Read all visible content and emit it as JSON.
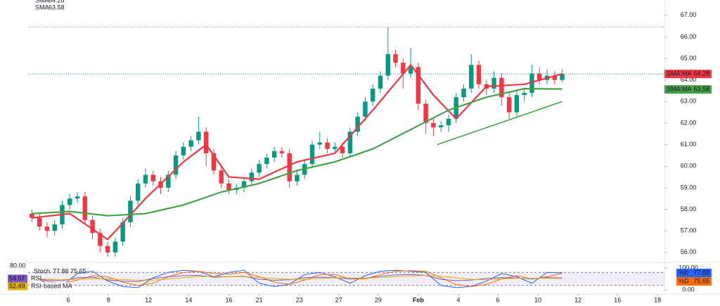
{
  "chart_data": [
    {
      "type": "candlestick",
      "up_color": "#089981",
      "down_color": "#f23645",
      "open": [
        57.8,
        57.6,
        57.2,
        57.0,
        57.3,
        58.2,
        58.5,
        58.6,
        57.5,
        56.9,
        56.3,
        56.0,
        56.5,
        57.4,
        58.4,
        59.2,
        59.6,
        59.3,
        59.0,
        59.6,
        60.5,
        60.9,
        61.2,
        61.6,
        60.6,
        59.8,
        59.2,
        58.9,
        59.0,
        59.3,
        59.7,
        60.1,
        60.4,
        60.7,
        60.6,
        59.3,
        59.6,
        60.1,
        61.0,
        61.1,
        60.8,
        60.9,
        60.6,
        61.6,
        62.3,
        63.0,
        63.6,
        64.2,
        65.2,
        64.8,
        64.3,
        64.6,
        62.9,
        62.0,
        61.8,
        61.9,
        62.2,
        63.2,
        63.6,
        64.7,
        63.8,
        63.6,
        64.1,
        63.2,
        62.5,
        63.3,
        63.4,
        64.3,
        64.0,
        64.2,
        64.0
      ],
      "high": [
        58.0,
        57.8,
        57.4,
        57.5,
        58.4,
        58.7,
        58.8,
        58.8,
        57.7,
        57.1,
        56.5,
        56.7,
        57.6,
        58.6,
        59.4,
        59.9,
        59.8,
        59.5,
        59.8,
        60.7,
        61.1,
        61.4,
        62.3,
        61.8,
        60.8,
        60.0,
        59.4,
        59.2,
        59.5,
        59.9,
        60.3,
        60.6,
        60.9,
        60.9,
        60.8,
        59.8,
        60.3,
        61.2,
        61.6,
        61.3,
        61.1,
        61.1,
        61.8,
        62.5,
        63.2,
        63.8,
        64.4,
        66.45,
        65.4,
        65.0,
        65.5,
        64.8,
        63.1,
        62.2,
        62.1,
        62.4,
        63.4,
        63.8,
        65.2,
        64.9,
        64.0,
        64.4,
        64.3,
        63.4,
        63.5,
        63.6,
        64.7,
        64.6,
        64.5,
        64.4,
        64.5
      ],
      "low": [
        57.4,
        57.0,
        56.7,
        56.8,
        57.1,
        58.0,
        58.3,
        57.3,
        56.6,
        56.0,
        55.8,
        55.8,
        56.3,
        57.2,
        58.2,
        59.0,
        59.1,
        58.7,
        58.8,
        59.4,
        60.3,
        60.7,
        61.0,
        60.0,
        59.6,
        59.0,
        58.7,
        58.7,
        58.8,
        59.1,
        59.5,
        59.9,
        60.2,
        60.4,
        59.0,
        59.1,
        59.4,
        59.9,
        60.8,
        60.6,
        60.6,
        60.4,
        60.4,
        61.4,
        62.1,
        62.8,
        63.4,
        64.0,
        64.6,
        63.6,
        64.1,
        62.6,
        61.5,
        61.4,
        61.6,
        61.6,
        62.0,
        63.0,
        63.4,
        63.6,
        63.3,
        63.4,
        62.8,
        62.2,
        62.3,
        63.0,
        63.2,
        63.8,
        63.8,
        63.8,
        63.9
      ],
      "close": [
        57.6,
        57.2,
        57.0,
        57.3,
        58.2,
        58.5,
        58.6,
        57.5,
        56.9,
        56.3,
        56.0,
        56.5,
        57.4,
        58.4,
        59.2,
        59.6,
        59.3,
        59.0,
        59.6,
        60.5,
        60.9,
        61.2,
        61.6,
        60.6,
        59.8,
        59.2,
        58.9,
        59.0,
        59.3,
        59.7,
        60.1,
        60.4,
        60.7,
        60.6,
        59.3,
        59.6,
        60.1,
        61.0,
        61.1,
        60.8,
        60.9,
        60.6,
        61.6,
        62.3,
        63.0,
        63.6,
        64.2,
        65.2,
        64.8,
        64.3,
        64.6,
        62.9,
        62.0,
        61.8,
        61.9,
        62.2,
        63.2,
        63.6,
        64.7,
        63.8,
        63.6,
        64.1,
        63.2,
        62.5,
        63.3,
        63.4,
        64.3,
        64.0,
        64.2,
        64.0,
        64.28
      ],
      "series": [
        {
          "name": "SMA",
          "tag": "SMA:MA",
          "color": "#f23645",
          "x": [
            0,
            5,
            10,
            15,
            20,
            23,
            26,
            30,
            35,
            40,
            45,
            50,
            53,
            56,
            60,
            65,
            70
          ],
          "values": [
            57.6,
            57.8,
            56.6,
            58.5,
            60.2,
            61.0,
            59.5,
            59.4,
            60.2,
            60.6,
            62.6,
            64.7,
            63.3,
            62.2,
            63.7,
            63.8,
            64.28
          ]
        },
        {
          "name": "SMA",
          "tag": "SMA:MA",
          "color": "#43a047",
          "x": [
            0,
            5,
            10,
            15,
            20,
            25,
            30,
            35,
            40,
            45,
            50,
            55,
            60,
            65,
            70
          ],
          "values": [
            57.8,
            57.9,
            57.7,
            57.8,
            58.2,
            58.8,
            59.2,
            59.8,
            60.2,
            60.8,
            61.7,
            62.6,
            63.2,
            63.6,
            63.58
          ]
        }
      ],
      "trendline": {
        "color": "#43a047",
        "x": [
          53.5,
          70
        ],
        "values": [
          61.0,
          63.0
        ]
      },
      "levels": [
        66.45
      ],
      "xlim": [
        -0.5,
        83.5
      ],
      "xticks": [
        {
          "value": 4.8,
          "label": "6"
        },
        {
          "value": 10.1,
          "label": "8"
        },
        {
          "value": 15.4,
          "label": "12"
        },
        {
          "value": 20.7,
          "label": "14"
        },
        {
          "value": 26.0,
          "label": "16"
        },
        {
          "value": 30.0,
          "label": "21"
        },
        {
          "value": 35.3,
          "label": "23"
        },
        {
          "value": 40.5,
          "label": "27"
        },
        {
          "value": 45.7,
          "label": "29"
        },
        {
          "value": 51.0,
          "label": "Feb"
        },
        {
          "value": 56.3,
          "label": "4"
        },
        {
          "value": 61.5,
          "label": "6"
        },
        {
          "value": 66.8,
          "label": "10"
        },
        {
          "value": 72.1,
          "label": "12"
        },
        {
          "value": 77.3,
          "label": "16"
        },
        {
          "value": 82.6,
          "label": "18"
        }
      ],
      "ylim": [
        55.7,
        67.45
      ],
      "yticks": [
        {
          "value": 56,
          "label": "56.00"
        },
        {
          "value": 57,
          "label": "57.00"
        },
        {
          "value": 58,
          "label": "58.00"
        },
        {
          "value": 59,
          "label": "59.00"
        },
        {
          "value": 60,
          "label": "60.00"
        },
        {
          "value": 61,
          "label": "61.00"
        },
        {
          "value": 62,
          "label": "62.00"
        },
        {
          "value": 63,
          "label": "63.00"
        },
        {
          "value": 64,
          "label": "64.00"
        },
        {
          "value": 65,
          "label": "65.00"
        },
        {
          "value": 66,
          "label": "66.00"
        },
        {
          "value": 67,
          "label": "67.00"
        }
      ]
    },
    {
      "type": "line",
      "title": "Stoch",
      "series": [
        {
          "name": "%K",
          "color": "#2962ff",
          "x": [
            0,
            2,
            4,
            6,
            8,
            10,
            12,
            14,
            16,
            18,
            20,
            22,
            24,
            26,
            28,
            30,
            32,
            34,
            36,
            38,
            40,
            42,
            44,
            46,
            48,
            50,
            52,
            54,
            56,
            58,
            60,
            62,
            64,
            66,
            68,
            70
          ],
          "values": [
            60,
            30,
            20,
            75,
            85,
            40,
            15,
            10,
            55,
            80,
            90,
            85,
            60,
            80,
            90,
            30,
            15,
            25,
            70,
            80,
            60,
            30,
            65,
            85,
            90,
            85,
            80,
            20,
            10,
            15,
            40,
            75,
            60,
            30,
            80,
            77.88
          ]
        },
        {
          "name": "%D",
          "color": "#ff6d00",
          "x": [
            0,
            2,
            4,
            6,
            8,
            10,
            12,
            14,
            16,
            18,
            20,
            22,
            24,
            26,
            28,
            30,
            32,
            34,
            36,
            38,
            40,
            42,
            44,
            46,
            48,
            50,
            52,
            54,
            56,
            58,
            60,
            62,
            64,
            66,
            68,
            70
          ],
          "values": [
            55,
            40,
            28,
            45,
            65,
            60,
            35,
            20,
            30,
            60,
            80,
            85,
            75,
            72,
            80,
            60,
            35,
            25,
            45,
            70,
            70,
            50,
            50,
            70,
            85,
            88,
            85,
            55,
            25,
            15,
            25,
            50,
            65,
            50,
            60,
            75.65
          ]
        },
        {
          "name": "RSI",
          "color": "#7e57c2",
          "x": [
            0,
            2,
            4,
            6,
            8,
            10,
            12,
            14,
            16,
            18,
            20,
            22,
            24,
            26,
            28,
            30,
            32,
            34,
            36,
            38,
            40,
            42,
            44,
            46,
            48,
            50,
            52,
            54,
            56,
            58,
            60,
            62,
            64,
            66,
            68,
            70
          ],
          "values": [
            50,
            45,
            42,
            55,
            58,
            45,
            40,
            38,
            52,
            60,
            65,
            66,
            58,
            60,
            62,
            48,
            44,
            46,
            55,
            58,
            56,
            50,
            54,
            62,
            68,
            70,
            66,
            48,
            42,
            45,
            52,
            56,
            54,
            50,
            56,
            54.57
          ]
        },
        {
          "name": "RSI-based MA",
          "color": "#e0b000",
          "x": [
            0,
            2,
            4,
            6,
            8,
            10,
            12,
            14,
            16,
            18,
            20,
            22,
            24,
            26,
            28,
            30,
            32,
            34,
            36,
            38,
            40,
            42,
            44,
            46,
            48,
            50,
            52,
            54,
            56,
            58,
            60,
            62,
            64,
            66,
            68,
            70
          ],
          "values": [
            50,
            49,
            47,
            48,
            51,
            50,
            47,
            44,
            45,
            50,
            55,
            60,
            62,
            60,
            60,
            57,
            52,
            48,
            48,
            52,
            55,
            54,
            54,
            56,
            60,
            64,
            66,
            62,
            55,
            48,
            46,
            50,
            53,
            53,
            53,
            52.49
          ]
        }
      ],
      "band": [
        20,
        80
      ],
      "ylim": [
        0,
        100
      ],
      "yticks": [
        {
          "value": 100,
          "label": "100.00"
        },
        {
          "value": 0,
          "label": "0.00"
        }
      ],
      "left_label": {
        "value": 80,
        "label": "80.00"
      }
    }
  ]
}
